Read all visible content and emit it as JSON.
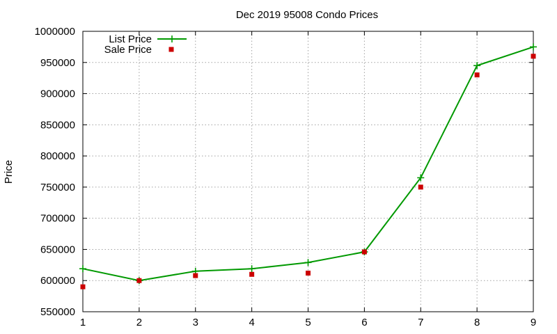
{
  "chart_data": {
    "type": "line",
    "title": "Dec 2019 95008 Condo Prices",
    "xlabel": "",
    "ylabel": "Price",
    "x": [
      1,
      2,
      3,
      4,
      5,
      6,
      7,
      8,
      9
    ],
    "xlim": [
      1,
      9
    ],
    "ylim": [
      550000,
      1000000
    ],
    "xticks": [
      "1",
      "2",
      "3",
      "4",
      "5",
      "6",
      "7",
      "8",
      "9"
    ],
    "yticks": [
      "550000",
      "600000",
      "650000",
      "700000",
      "750000",
      "800000",
      "850000",
      "900000",
      "950000",
      "1000000"
    ],
    "grid": true,
    "legend_position": "top-left",
    "series": [
      {
        "name": "List Price",
        "style": "line-plus",
        "color": "#009900",
        "values": [
          619000,
          600000,
          615000,
          619000,
          629000,
          646000,
          765000,
          945000,
          975000
        ]
      },
      {
        "name": "Sale Price",
        "style": "square-points",
        "color": "#cc0000",
        "values": [
          590000,
          600000,
          608000,
          610000,
          612000,
          646000,
          750000,
          930000,
          960000
        ]
      }
    ]
  }
}
